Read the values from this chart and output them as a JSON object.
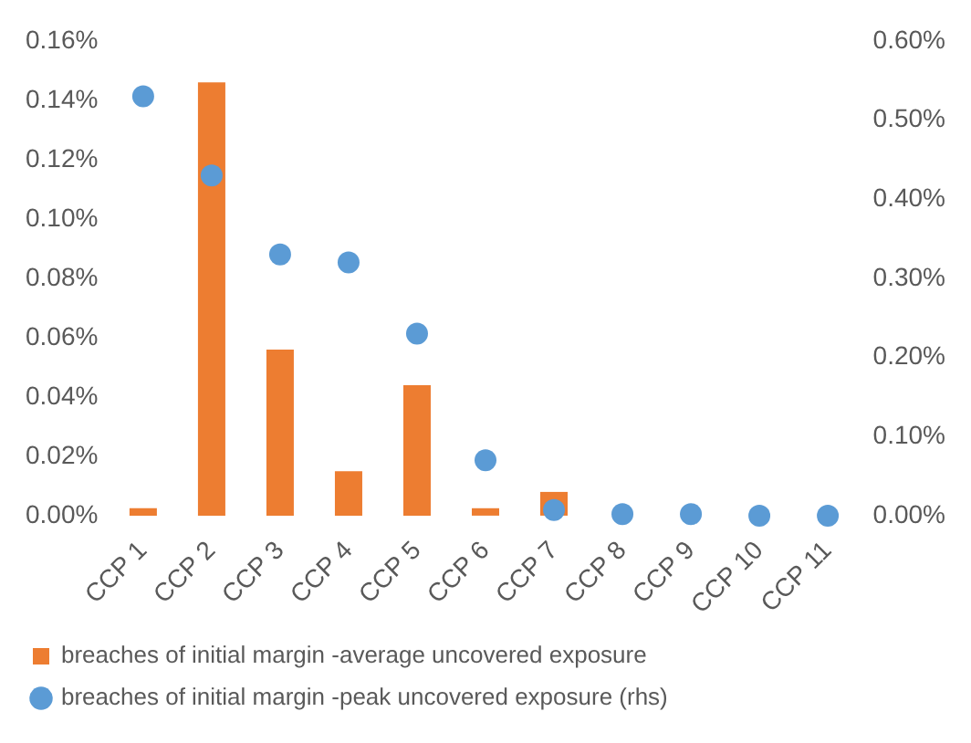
{
  "chart_data": {
    "type": "bar",
    "categories": [
      "CCP 1",
      "CCP 2",
      "CCP 3",
      "CCP 4",
      "CCP 5",
      "CCP 6",
      "CCP 7",
      "CCP 8",
      "CCP 9",
      "CCP 10",
      "CCP 11"
    ],
    "series": [
      {
        "name": "breaches of initial margin -average uncovered exposure",
        "color": "#ed7d31",
        "values": [
          0.0025,
          0.146,
          0.056,
          0.015,
          0.044,
          0.0025,
          0.008,
          0,
          0,
          0,
          0
        ]
      },
      {
        "name": "breaches of initial margin -peak uncovered exposure (rhs)",
        "type": "scatter",
        "axis": "y2",
        "marker": "circle",
        "color": "#5b9bd5",
        "values": [
          0.53,
          0.43,
          0.33,
          0.32,
          0.23,
          0.07,
          0.007,
          0.002,
          0.002,
          0,
          0
        ]
      }
    ],
    "ylim": [
      0,
      0.16
    ],
    "yticks": [
      {
        "value": 0,
        "label": "0.00%"
      },
      {
        "value": 0.02,
        "label": "0.02%"
      },
      {
        "value": 0.04,
        "label": "0.04%"
      },
      {
        "value": 0.06,
        "label": "0.06%"
      },
      {
        "value": 0.08,
        "label": "0.08%"
      },
      {
        "value": 0.1,
        "label": "0.10%"
      },
      {
        "value": 0.12,
        "label": "0.12%"
      },
      {
        "value": 0.14,
        "label": "0.14%"
      },
      {
        "value": 0.16,
        "label": "0.16%"
      }
    ],
    "y2lim": [
      0,
      0.6
    ],
    "y2ticks": [
      {
        "value": 0,
        "label": "0.00%"
      },
      {
        "value": 0.1,
        "label": "0.10%"
      },
      {
        "value": 0.2,
        "label": "0.20%"
      },
      {
        "value": 0.3,
        "label": "0.30%"
      },
      {
        "value": 0.4,
        "label": "0.40%"
      },
      {
        "value": 0.5,
        "label": "0.50%"
      },
      {
        "value": 0.6,
        "label": "0.60%"
      }
    ],
    "grid": false,
    "legend": "bottom"
  }
}
